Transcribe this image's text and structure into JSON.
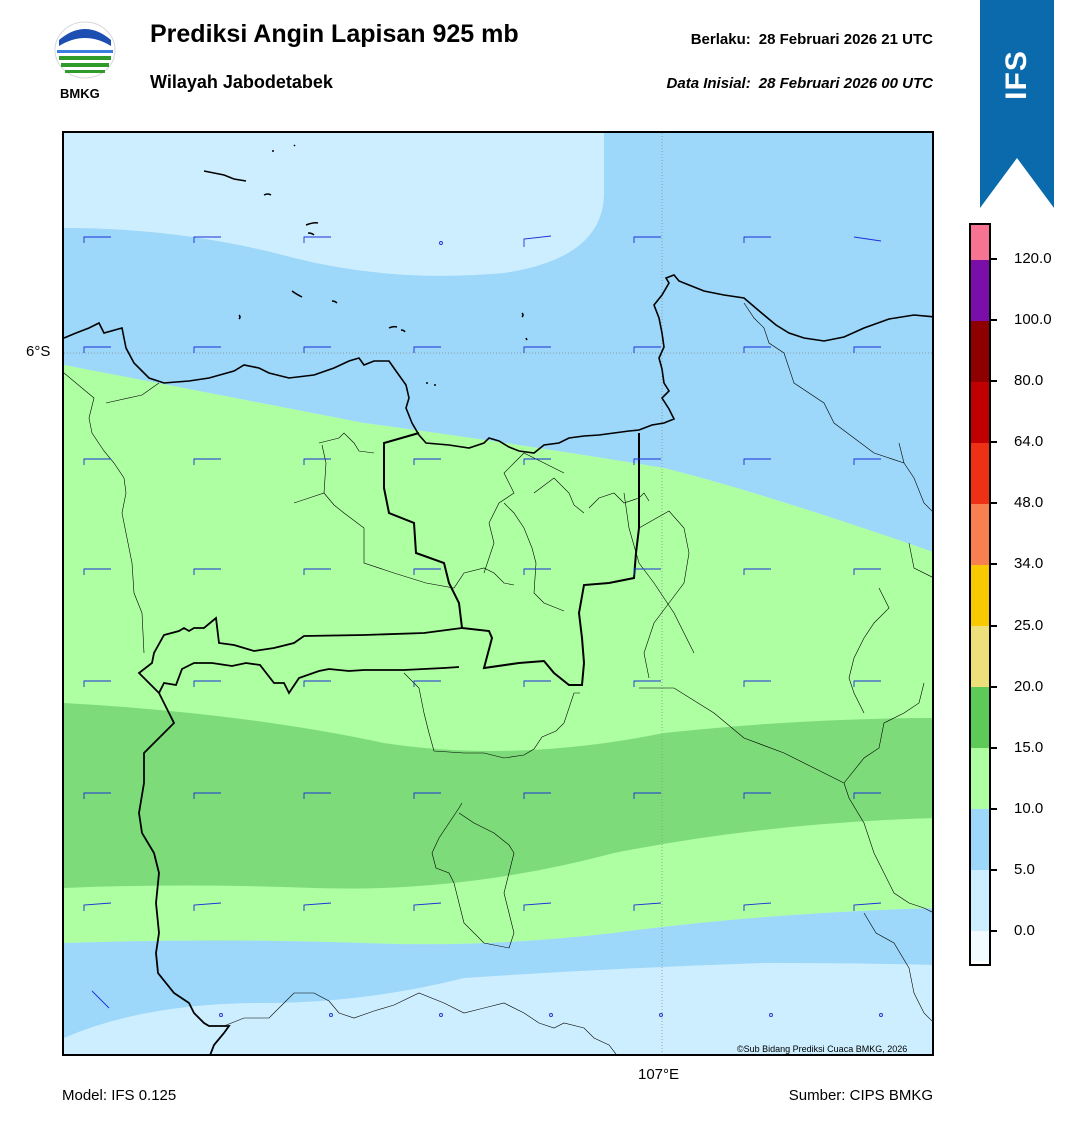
{
  "header": {
    "title": "Prediksi Angin Lapisan 925 mb",
    "subtitle": "Wilayah Jabodetabek",
    "valid_label": "Berlaku:",
    "valid_value": "28 Februari 2026 21 UTC",
    "init_label": "Data Inisial:",
    "init_value": "28 Februari 2026 00 UTC"
  },
  "logo": {
    "text": "BMKG",
    "icon": "bmkg-logo-icon"
  },
  "ribbon": {
    "text": "IFS",
    "color": "#0a6aab"
  },
  "map": {
    "lat_label": "6°S",
    "lon_label": "107°E",
    "credit": "©Sub Bidang Prediksi Cuaca BMKG, 2026",
    "wind_colors": {
      "calm": "#cdeefe",
      "light": "#9dd7f9",
      "moderate": "#aefea2",
      "fresh": "#7ddc79"
    },
    "coast_color": "#000000",
    "boundary_color": "#000000",
    "barb_color": "#1c2fd8"
  },
  "colorbar": {
    "levels": [
      {
        "label": "120.0",
        "color": "#7a0ea8"
      },
      {
        "label": "100.0",
        "color": "#8e0000"
      },
      {
        "label": "80.0",
        "color": "#c00000"
      },
      {
        "label": "64.0",
        "color": "#ee3014"
      },
      {
        "label": "48.0",
        "color": "#f88050"
      },
      {
        "label": "34.0",
        "color": "#f8c800"
      },
      {
        "label": "25.0",
        "color": "#ede07a"
      },
      {
        "label": "20.0",
        "color": "#5dc956"
      },
      {
        "label": "15.0",
        "color": "#aefea2"
      },
      {
        "label": "10.0",
        "color": "#9dd7f9"
      },
      {
        "label": "5.0",
        "color": "#cdeefe"
      },
      {
        "label": "0.0",
        "color": "#f2fbff"
      }
    ],
    "top_color": "#f77392"
  },
  "footer": {
    "model": "Model: IFS 0.125",
    "source": "Sumber: CIPS BMKG"
  }
}
